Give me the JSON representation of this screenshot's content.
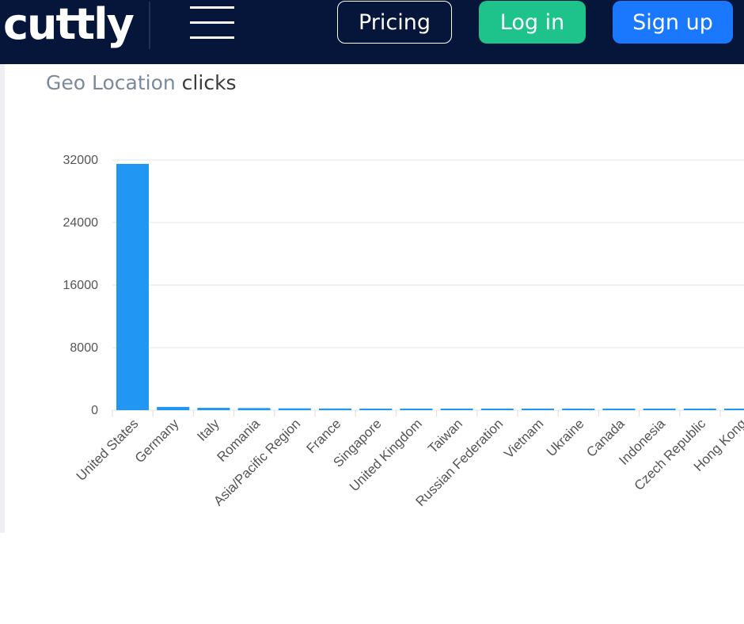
{
  "header": {
    "logo_text": "cuttly",
    "pricing_label": "Pricing",
    "login_label": "Log in",
    "signup_label": "Sign up",
    "colors": {
      "bar_bg": "#05163a",
      "login": "#1ec28b",
      "signup": "#1a78ff"
    }
  },
  "section": {
    "title_accent": "Geo Location",
    "title_rest": " clicks"
  },
  "chart_data": {
    "type": "bar",
    "categories": [
      "United States",
      "Germany",
      "Italy",
      "Romania",
      "Asia/Pacific Region",
      "France",
      "Singapore",
      "United Kingdom",
      "Taiwan",
      "Russian Federation",
      "Vietnam",
      "Ukraine",
      "Canada",
      "Indonesia",
      "Czech Republic",
      "Hong Kong"
    ],
    "values": [
      31500,
      420,
      300,
      270,
      240,
      220,
      160,
      150,
      140,
      90,
      80,
      70,
      60,
      55,
      50,
      45
    ],
    "yticks": [
      0,
      8000,
      16000,
      24000,
      32000
    ],
    "ylim": [
      0,
      32000
    ],
    "bar_color": "#2196f3",
    "grid": true
  }
}
